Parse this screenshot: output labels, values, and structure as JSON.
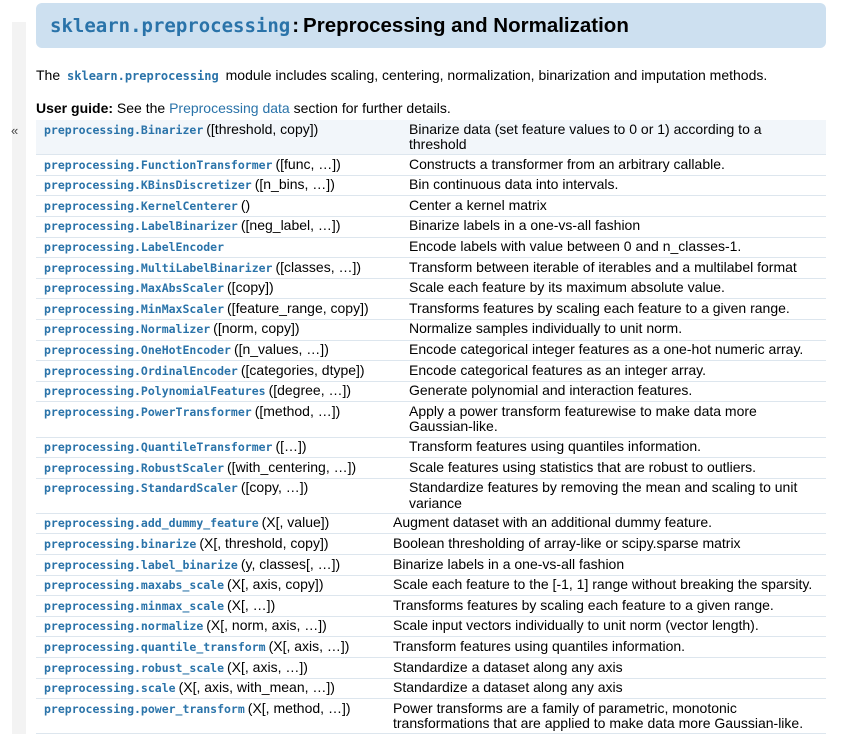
{
  "title": {
    "module": "sklearn.preprocessing",
    "colon": ":",
    "text": "Preprocessing and Normalization"
  },
  "intro": {
    "before": "The",
    "module": "sklearn.preprocessing",
    "after": "module includes scaling, centering, normalization, binarization and imputation methods."
  },
  "guide": {
    "label": "User guide:",
    "before": "See the",
    "link": "Preprocessing data",
    "after": "section for further details."
  },
  "sidebar": {
    "collapse_glyph": "«"
  },
  "classes": [
    {
      "name": "preprocessing.Binarizer",
      "sig": "([threshold, copy])",
      "desc": "Binarize data (set feature values to 0 or 1) according to a threshold",
      "hl": true
    },
    {
      "name": "preprocessing.FunctionTransformer",
      "sig": "([func, …])",
      "desc": "Constructs a transformer from an arbitrary callable.",
      "hl": false
    },
    {
      "name": "preprocessing.KBinsDiscretizer",
      "sig": "([n_bins, …])",
      "desc": "Bin continuous data into intervals.",
      "hl": false
    },
    {
      "name": "preprocessing.KernelCenterer",
      "sig": "()",
      "desc": "Center a kernel matrix",
      "hl": false
    },
    {
      "name": "preprocessing.LabelBinarizer",
      "sig": "([neg_label, …])",
      "desc": "Binarize labels in a one-vs-all fashion",
      "hl": false
    },
    {
      "name": "preprocessing.LabelEncoder",
      "sig": "",
      "desc": "Encode labels with value between 0 and n_classes-1.",
      "hl": false
    },
    {
      "name": "preprocessing.MultiLabelBinarizer",
      "sig": "([classes, …])",
      "desc": "Transform between iterable of iterables and a multilabel format",
      "hl": false
    },
    {
      "name": "preprocessing.MaxAbsScaler",
      "sig": "([copy])",
      "desc": "Scale each feature by its maximum absolute value.",
      "hl": false
    },
    {
      "name": "preprocessing.MinMaxScaler",
      "sig": "([feature_range, copy])",
      "desc": "Transforms features by scaling each feature to a given range.",
      "hl": false
    },
    {
      "name": "preprocessing.Normalizer",
      "sig": "([norm, copy])",
      "desc": "Normalize samples individually to unit norm.",
      "hl": false
    },
    {
      "name": "preprocessing.OneHotEncoder",
      "sig": "([n_values, …])",
      "desc": "Encode categorical integer features as a one-hot numeric array.",
      "hl": false
    },
    {
      "name": "preprocessing.OrdinalEncoder",
      "sig": "([categories, dtype])",
      "desc": "Encode categorical features as an integer array.",
      "hl": false
    },
    {
      "name": "preprocessing.PolynomialFeatures",
      "sig": "([degree, …])",
      "desc": "Generate polynomial and interaction features.",
      "hl": false
    },
    {
      "name": "preprocessing.PowerTransformer",
      "sig": "([method, …])",
      "desc": "Apply a power transform featurewise to make data more Gaussian-like.",
      "hl": false
    },
    {
      "name": "preprocessing.QuantileTransformer",
      "sig": "([…])",
      "desc": "Transform features using quantiles information.",
      "hl": false
    },
    {
      "name": "preprocessing.RobustScaler",
      "sig": "([with_centering, …])",
      "desc": "Scale features using statistics that are robust to outliers.",
      "hl": false
    },
    {
      "name": "preprocessing.StandardScaler",
      "sig": "([copy, …])",
      "desc": "Standardize features by removing the mean and scaling to unit variance",
      "hl": false
    }
  ],
  "functions": [
    {
      "name": "preprocessing.add_dummy_feature",
      "sig": "(X[, value])",
      "desc": "Augment dataset with an additional dummy feature.",
      "hl": false
    },
    {
      "name": "preprocessing.binarize",
      "sig": "(X[, threshold, copy])",
      "desc": "Boolean thresholding of array-like or scipy.sparse matrix",
      "hl": false
    },
    {
      "name": "preprocessing.label_binarize",
      "sig": "(y, classes[, …])",
      "desc": "Binarize labels in a one-vs-all fashion",
      "hl": false
    },
    {
      "name": "preprocessing.maxabs_scale",
      "sig": "(X[, axis, copy])",
      "desc": "Scale each feature to the [-1, 1] range without breaking the sparsity.",
      "hl": false
    },
    {
      "name": "preprocessing.minmax_scale",
      "sig": "(X[, …])",
      "desc": "Transforms features by scaling each feature to a given range.",
      "hl": false
    },
    {
      "name": "preprocessing.normalize",
      "sig": "(X[, norm, axis, …])",
      "desc": "Scale input vectors individually to unit norm (vector length).",
      "hl": false
    },
    {
      "name": "preprocessing.quantile_transform",
      "sig": "(X[, axis, …])",
      "desc": "Transform features using quantiles information.",
      "hl": false
    },
    {
      "name": "preprocessing.robust_scale",
      "sig": "(X[, axis, …])",
      "desc": "Standardize a dataset along any axis",
      "hl": false
    },
    {
      "name": "preprocessing.scale",
      "sig": "(X[, axis, with_mean, …])",
      "desc": "Standardize a dataset along any axis",
      "hl": false
    },
    {
      "name": "preprocessing.power_transform",
      "sig": "(X[, method, …])",
      "desc": "Power transforms are a family of parametric, monotonic transformations that are applied to make data more Gaussian-like.",
      "hl": false
    }
  ]
}
